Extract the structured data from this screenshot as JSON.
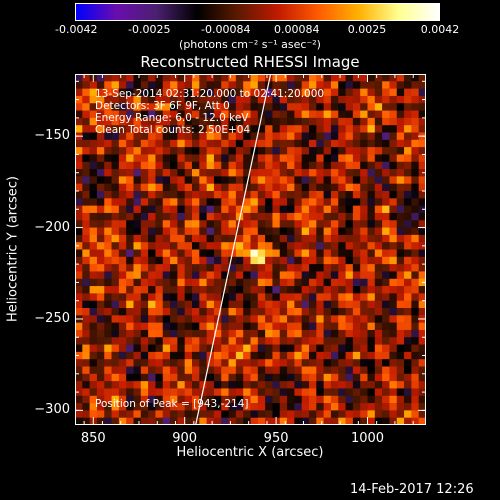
{
  "colorbar": {
    "ticks": [
      "-0.0042",
      "-0.0025",
      "-0.00084",
      "0.00084",
      "0.0025",
      "0.0042"
    ],
    "unit_label": "(photons cm⁻² s⁻¹ asec⁻²)",
    "colors": [
      "#0000ff",
      "#6a0dad",
      "#4b2070",
      "#000000",
      "#5a1a00",
      "#c01a00",
      "#ff5a00",
      "#ffb000",
      "#ffff90",
      "#ffffff"
    ]
  },
  "chart_data": {
    "type": "heatmap",
    "title": "Reconstructed RHESSI Image",
    "xlabel": "Heliocentric X (arcsec)",
    "ylabel": "Heliocentric Y (arcsec)",
    "xlim": [
      840,
      1032
    ],
    "ylim": [
      -308,
      -116
    ],
    "x_ticks": [
      850,
      900,
      950,
      1000
    ],
    "y_ticks": [
      -150,
      -200,
      -250,
      -300
    ],
    "peak": [
      943,
      -214
    ],
    "limb_line": [
      [
        906,
        -308
      ],
      [
        947,
        -116
      ]
    ],
    "annotations": [
      "13-Sep-2014 02:31:20.000 to 02:41:20.000",
      "Detectors: 3F 6F 9F, Att 0",
      "Energy Range: 6.0 - 12.0 keV",
      "Clean    Total counts: 2.50E+04"
    ],
    "peak_label": "Position of Peak = [943,-214]",
    "vmin": -0.0042,
    "vmax": 0.0042
  },
  "timestamp": "14-Feb-2017 12:26"
}
